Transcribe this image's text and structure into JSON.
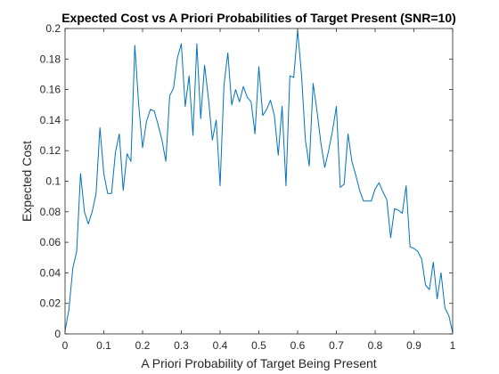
{
  "chart_data": {
    "type": "line",
    "title": "Expected Cost vs A Priori Probabilities of Target Present (SNR=10)",
    "xlabel": "A Priori Probability of Target Being Present",
    "ylabel": "Expected Cost",
    "xlim": [
      0,
      1
    ],
    "ylim": [
      0,
      0.2
    ],
    "x_ticks": [
      0,
      0.1,
      0.2,
      0.3,
      0.4,
      0.5,
      0.6,
      0.7,
      0.8,
      0.9,
      1
    ],
    "x_tick_labels": [
      "0",
      "0.1",
      "0.2",
      "0.3",
      "0.4",
      "0.5",
      "0.6",
      "0.7",
      "0.8",
      "0.9",
      "1"
    ],
    "y_ticks": [
      0,
      0.02,
      0.04,
      0.06,
      0.08,
      0.1,
      0.12,
      0.14,
      0.16,
      0.18,
      0.2
    ],
    "y_tick_labels": [
      "0",
      "0.02",
      "0.04",
      "0.06",
      "0.08",
      "0.1",
      "0.12",
      "0.14",
      "0.16",
      "0.18",
      "0.2"
    ],
    "grid": false,
    "line_color": "#0072BD",
    "series": [
      {
        "x": [
          0,
          0.01,
          0.02,
          0.03,
          0.04,
          0.05,
          0.06,
          0.07,
          0.08,
          0.09,
          0.1,
          0.11,
          0.12,
          0.13,
          0.14,
          0.15,
          0.16,
          0.17,
          0.18,
          0.19,
          0.2,
          0.21,
          0.22,
          0.23,
          0.24,
          0.25,
          0.26,
          0.27,
          0.28,
          0.29,
          0.3,
          0.31,
          0.32,
          0.33,
          0.34,
          0.35,
          0.36,
          0.37,
          0.38,
          0.39,
          0.4,
          0.41,
          0.42,
          0.43,
          0.44,
          0.45,
          0.46,
          0.47,
          0.48,
          0.49,
          0.5,
          0.51,
          0.52,
          0.53,
          0.54,
          0.55,
          0.56,
          0.57,
          0.58,
          0.59,
          0.6,
          0.61,
          0.62,
          0.63,
          0.64,
          0.65,
          0.66,
          0.67,
          0.68,
          0.69,
          0.7,
          0.71,
          0.72,
          0.73,
          0.74,
          0.75,
          0.76,
          0.77,
          0.78,
          0.79,
          0.8,
          0.81,
          0.82,
          0.83,
          0.84,
          0.85,
          0.86,
          0.87,
          0.88,
          0.89,
          0.9,
          0.91,
          0.92,
          0.93,
          0.94,
          0.95,
          0.96,
          0.97,
          0.98,
          0.99,
          1
        ],
        "values": [
          0.002,
          0.016,
          0.043,
          0.054,
          0.105,
          0.08,
          0.072,
          0.08,
          0.092,
          0.135,
          0.105,
          0.092,
          0.092,
          0.119,
          0.131,
          0.094,
          0.118,
          0.113,
          0.189,
          0.15,
          0.122,
          0.139,
          0.147,
          0.146,
          0.137,
          0.127,
          0.113,
          0.156,
          0.161,
          0.181,
          0.19,
          0.149,
          0.169,
          0.13,
          0.19,
          0.141,
          0.176,
          0.154,
          0.127,
          0.14,
          0.097,
          0.163,
          0.184,
          0.15,
          0.16,
          0.152,
          0.162,
          0.155,
          0.152,
          0.131,
          0.175,
          0.143,
          0.147,
          0.153,
          0.143,
          0.117,
          0.149,
          0.097,
          0.169,
          0.168,
          0.199,
          0.17,
          0.127,
          0.11,
          0.164,
          0.146,
          0.125,
          0.109,
          0.12,
          0.133,
          0.149,
          0.096,
          0.098,
          0.131,
          0.113,
          0.104,
          0.094,
          0.087,
          0.087,
          0.087,
          0.095,
          0.099,
          0.093,
          0.088,
          0.063,
          0.082,
          0.081,
          0.079,
          0.097,
          0.057,
          0.056,
          0.054,
          0.049,
          0.032,
          0.029,
          0.047,
          0.023,
          0.04,
          0.017,
          0.012,
          0.001
        ]
      }
    ]
  }
}
